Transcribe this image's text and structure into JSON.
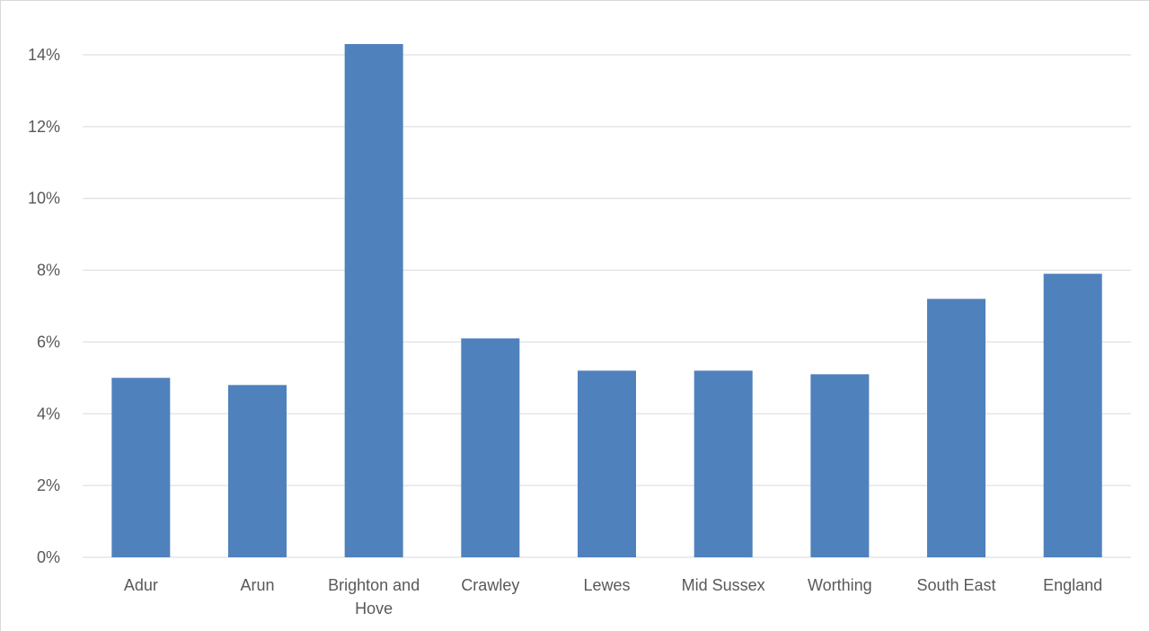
{
  "chart_data": {
    "type": "bar",
    "title": "",
    "xlabel": "",
    "ylabel": "",
    "categories": [
      [
        "Adur"
      ],
      [
        "Arun"
      ],
      [
        "Brighton and",
        "Hove"
      ],
      [
        "Crawley"
      ],
      [
        "Lewes"
      ],
      [
        "Mid Sussex"
      ],
      [
        "Worthing"
      ],
      [
        "South East"
      ],
      [
        "England"
      ]
    ],
    "values": [
      5.0,
      4.8,
      14.3,
      6.1,
      5.2,
      5.2,
      5.1,
      7.2,
      7.9
    ],
    "ylim": [
      0,
      14
    ],
    "yticks": [
      0,
      2,
      4,
      6,
      8,
      10,
      12,
      14
    ],
    "ytick_labels": [
      "0%",
      "2%",
      "4%",
      "6%",
      "8%",
      "10%",
      "12%",
      "14%"
    ],
    "grid": true,
    "legend": "none",
    "colors": {
      "bar": "#4f81bd",
      "grid": "#d9d9d9",
      "text": "#595959"
    }
  }
}
